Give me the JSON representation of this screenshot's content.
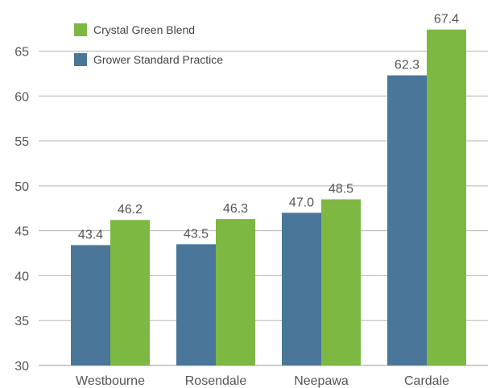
{
  "chart_data": {
    "type": "bar",
    "title": "",
    "xlabel": "",
    "ylabel": "",
    "categories": [
      "Westbourne",
      "Rosendale",
      "Neepawa",
      "Cardale"
    ],
    "series": [
      {
        "name": "Grower Standard Practice",
        "color": "#4a7699",
        "values": [
          43.4,
          43.5,
          47.0,
          62.3
        ]
      },
      {
        "name": "Crystal Green Blend",
        "color": "#7cb842",
        "values": [
          46.2,
          46.3,
          48.5,
          67.4
        ]
      }
    ],
    "ylim": [
      30,
      68
    ],
    "yticks": [
      30,
      35,
      40,
      45,
      50,
      55,
      60,
      65
    ],
    "grid": true,
    "legend_position": "top-left",
    "legend_order": [
      "Crystal Green Blend",
      "Grower Standard Practice"
    ]
  }
}
